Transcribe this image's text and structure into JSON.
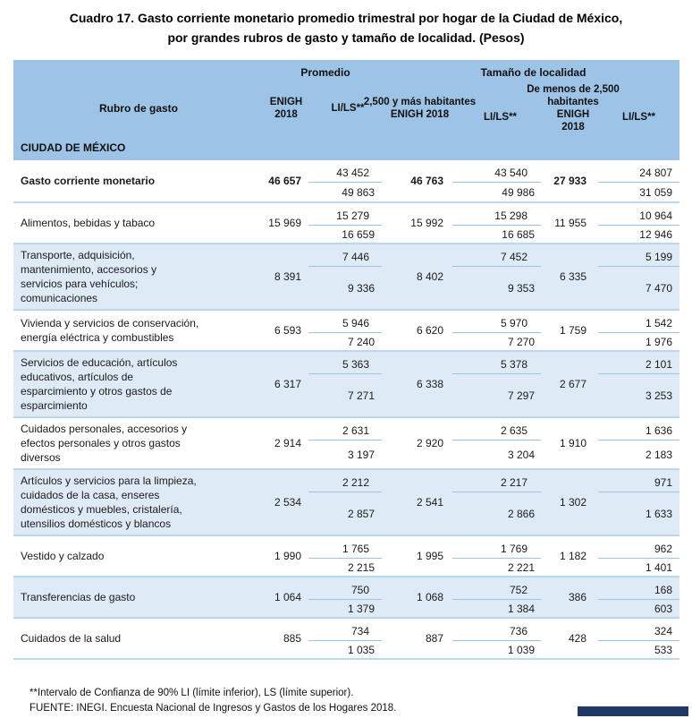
{
  "title": {
    "line1": "Cuadro 17. Gasto corriente monetario promedio trimestral por hogar de la Ciudad de México,",
    "line2": "por grandes rubros de gasto y tamaño de localidad. (Pesos)"
  },
  "header": {
    "promedio": "Promedio",
    "tamano_localidad": "Tamaño de localidad",
    "rubro": "Rubro de gasto",
    "enigh": "ENIGH 2018",
    "lils": "LI/LS**",
    "loc_urban": "2,500 y más habitantes",
    "loc_rural": "De menos de 2,500 habitantes",
    "region": "CIUDAD DE MÉXICO"
  },
  "rows": [
    {
      "label": "Gasto corriente monetario",
      "bold": true,
      "shaded": false,
      "avg": "46 657",
      "avg_li": "43 452",
      "avg_ls": "49 863",
      "urban": "46 763",
      "urban_li": "43 540",
      "urban_ls": "49 986",
      "rural": "27 933",
      "rural_li": "24 807",
      "rural_ls": "31 059"
    },
    {
      "label": "Alimentos, bebidas y tabaco",
      "bold": false,
      "shaded": false,
      "avg": "15 969",
      "avg_li": "15 279",
      "avg_ls": "16 659",
      "urban": "15 992",
      "urban_li": "15 298",
      "urban_ls": "16 685",
      "rural": "11 955",
      "rural_li": "10 964",
      "rural_ls": "12 946"
    },
    {
      "label": "Transporte, adquisición, mantenimiento, accesorios y servicios para vehículos; comunicaciones",
      "bold": false,
      "shaded": true,
      "avg": "8 391",
      "avg_li": "7 446",
      "avg_ls": "9 336",
      "urban": "8 402",
      "urban_li": "7 452",
      "urban_ls": "9 353",
      "rural": "6 335",
      "rural_li": "5 199",
      "rural_ls": "7 470"
    },
    {
      "label": "Vivienda y servicios de conservación, energía eléctrica y combustibles",
      "bold": false,
      "shaded": false,
      "avg": "6 593",
      "avg_li": "5 946",
      "avg_ls": "7 240",
      "urban": "6 620",
      "urban_li": "5 970",
      "urban_ls": "7 270",
      "rural": "1 759",
      "rural_li": "1 542",
      "rural_ls": "1 976"
    },
    {
      "label": "Servicios de educación, artículos educativos, artículos de esparcimiento y otros gastos de esparcimiento",
      "bold": false,
      "shaded": true,
      "avg": "6 317",
      "avg_li": "5 363",
      "avg_ls": "7 271",
      "urban": "6 338",
      "urban_li": "5 378",
      "urban_ls": "7 297",
      "rural": "2 677",
      "rural_li": "2 101",
      "rural_ls": "3 253"
    },
    {
      "label": "Cuidados personales, accesorios y efectos personales y otros gastos diversos",
      "bold": false,
      "shaded": false,
      "avg": "2 914",
      "avg_li": "2 631",
      "avg_ls": "3 197",
      "urban": "2 920",
      "urban_li": "2 635",
      "urban_ls": "3 204",
      "rural": "1 910",
      "rural_li": "1 636",
      "rural_ls": "2 183"
    },
    {
      "label": "Artículos y servicios para la limpieza, cuidados de la casa, enseres domésticos y muebles, cristalería, utensilios domésticos y blancos",
      "bold": false,
      "shaded": true,
      "avg": "2 534",
      "avg_li": "2 212",
      "avg_ls": "2 857",
      "urban": "2 541",
      "urban_li": "2 217",
      "urban_ls": "2 866",
      "rural": "1 302",
      "rural_li": "971",
      "rural_ls": "1 633"
    },
    {
      "label": "Vestido y calzado",
      "bold": false,
      "shaded": false,
      "avg": "1 990",
      "avg_li": "1 765",
      "avg_ls": "2 215",
      "urban": "1 995",
      "urban_li": "1 769",
      "urban_ls": "2 221",
      "rural": "1 182",
      "rural_li": "962",
      "rural_ls": "1 401"
    },
    {
      "label": "Transferencias de gasto",
      "bold": false,
      "shaded": true,
      "avg": "1 064",
      "avg_li": "750",
      "avg_ls": "1 379",
      "urban": "1 068",
      "urban_li": "752",
      "urban_ls": "1 384",
      "rural": "386",
      "rural_li": "168",
      "rural_ls": "603"
    },
    {
      "label": "Cuidados de la salud",
      "bold": false,
      "shaded": false,
      "avg": "885",
      "avg_li": "734",
      "avg_ls": "1 035",
      "urban": "887",
      "urban_li": "736",
      "urban_ls": "1 039",
      "rural": "428",
      "rural_li": "324",
      "rural_ls": "533"
    }
  ],
  "footnotes": {
    "line1": "**Intervalo de Confianza de 90% LI (límite inferior), LS (límite superior).",
    "line2": "FUENTE: INEGI. Encuesta Nacional de Ingresos y Gastos de los Hogares 2018."
  },
  "colors": {
    "header_blue": "#9DC3E6",
    "row_shaded_blue": "#DEEAF6",
    "separator_blue": "#BDD7EE",
    "interval_line_blue": "#9DC3E6",
    "corner_bar_navy": "#1F3864"
  },
  "chart_data": {
    "type": "table",
    "title": "Cuadro 17. Gasto corriente monetario promedio trimestral por hogar de la Ciudad de México, por grandes rubros de gasto y tamaño de localidad. (Pesos)",
    "columns": [
      "Rubro de gasto",
      "ENIGH 2018 Promedio",
      "LI Promedio",
      "LS Promedio",
      "ENIGH 2018 2,500 y más habitantes",
      "LI 2,500 y más",
      "LS 2,500 y más",
      "ENIGH 2018 menos de 2,500 habitantes",
      "LI menos de 2,500",
      "LS menos de 2,500"
    ],
    "rows": [
      [
        "Gasto corriente monetario",
        46657,
        43452,
        49863,
        46763,
        43540,
        49986,
        27933,
        24807,
        31059
      ],
      [
        "Alimentos, bebidas y tabaco",
        15969,
        15279,
        16659,
        15992,
        15298,
        16685,
        11955,
        10964,
        12946
      ],
      [
        "Transporte, adquisición, mantenimiento, accesorios y servicios para vehículos; comunicaciones",
        8391,
        7446,
        9336,
        8402,
        7452,
        9353,
        6335,
        5199,
        7470
      ],
      [
        "Vivienda y servicios de conservación, energía eléctrica y combustibles",
        6593,
        5946,
        7240,
        6620,
        5970,
        7270,
        1759,
        1542,
        1976
      ],
      [
        "Servicios de educación, artículos educativos, artículos de esparcimiento y otros gastos de esparcimiento",
        6317,
        5363,
        7271,
        6338,
        5378,
        7297,
        2677,
        2101,
        3253
      ],
      [
        "Cuidados personales, accesorios y efectos personales y otros gastos diversos",
        2914,
        2631,
        3197,
        2920,
        2635,
        3204,
        1910,
        1636,
        2183
      ],
      [
        "Artículos y servicios para la limpieza, cuidados de la casa, enseres domésticos y muebles, cristalería, utensilios domésticos y blancos",
        2534,
        2212,
        2857,
        2541,
        2217,
        2866,
        1302,
        971,
        1633
      ],
      [
        "Vestido y calzado",
        1990,
        1765,
        2215,
        1995,
        1769,
        2221,
        1182,
        962,
        1401
      ],
      [
        "Transferencias de gasto",
        1064,
        750,
        1379,
        1068,
        752,
        1384,
        386,
        168,
        603
      ],
      [
        "Cuidados de la salud",
        885,
        734,
        1035,
        887,
        736,
        1039,
        428,
        324,
        533
      ]
    ]
  }
}
